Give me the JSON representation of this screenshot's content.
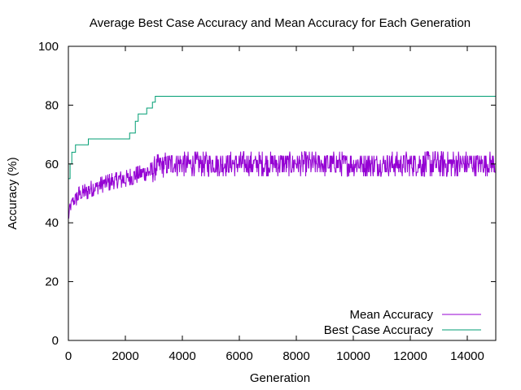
{
  "chart_data": {
    "type": "line",
    "title": "Average Best Case Accuracy and Mean Accuracy for Each Generation",
    "xlabel": "Generation",
    "ylabel": "Accuracy (%)",
    "xlim": [
      0,
      15000
    ],
    "ylim": [
      0,
      100
    ],
    "xticks": [
      0,
      2000,
      4000,
      6000,
      8000,
      10000,
      12000,
      14000
    ],
    "yticks": [
      0,
      20,
      40,
      60,
      80,
      100
    ],
    "grid": false,
    "legend_position": "bottom-right",
    "series": [
      {
        "name": "Mean Accuracy",
        "color": "#9400d3",
        "noisy": true,
        "x": [
          0,
          50,
          150,
          300,
          500,
          700,
          900,
          1200,
          1500,
          2000,
          2300,
          2600,
          2900,
          3100,
          3300,
          3600,
          4000,
          5000,
          6000,
          8000,
          10000,
          12000,
          13000,
          14000,
          15000
        ],
        "y": [
          42,
          45,
          47,
          49,
          50,
          51,
          52,
          53,
          54,
          55,
          56,
          57,
          57.5,
          59,
          59.5,
          60,
          60,
          60,
          60,
          60,
          60,
          60,
          60,
          60,
          60
        ],
        "amp": [
          2,
          2,
          2,
          3,
          3,
          3,
          3,
          3,
          3,
          3,
          3,
          3,
          4,
          4,
          4,
          4,
          4,
          4,
          4,
          4,
          4,
          4,
          5,
          4,
          4
        ]
      },
      {
        "name": "Best Case Accuracy",
        "color": "#009e73",
        "noisy": false,
        "x": [
          0,
          60,
          60,
          120,
          120,
          250,
          250,
          700,
          700,
          2150,
          2150,
          2350,
          2350,
          2450,
          2450,
          2750,
          2750,
          2950,
          2950,
          3050,
          3050,
          15000
        ],
        "y": [
          55,
          55,
          60,
          60,
          64,
          64,
          66.5,
          66.5,
          68.5,
          68.5,
          70.5,
          70.5,
          74.5,
          74.5,
          77,
          77,
          79,
          79,
          81,
          81,
          83,
          83
        ]
      }
    ]
  }
}
